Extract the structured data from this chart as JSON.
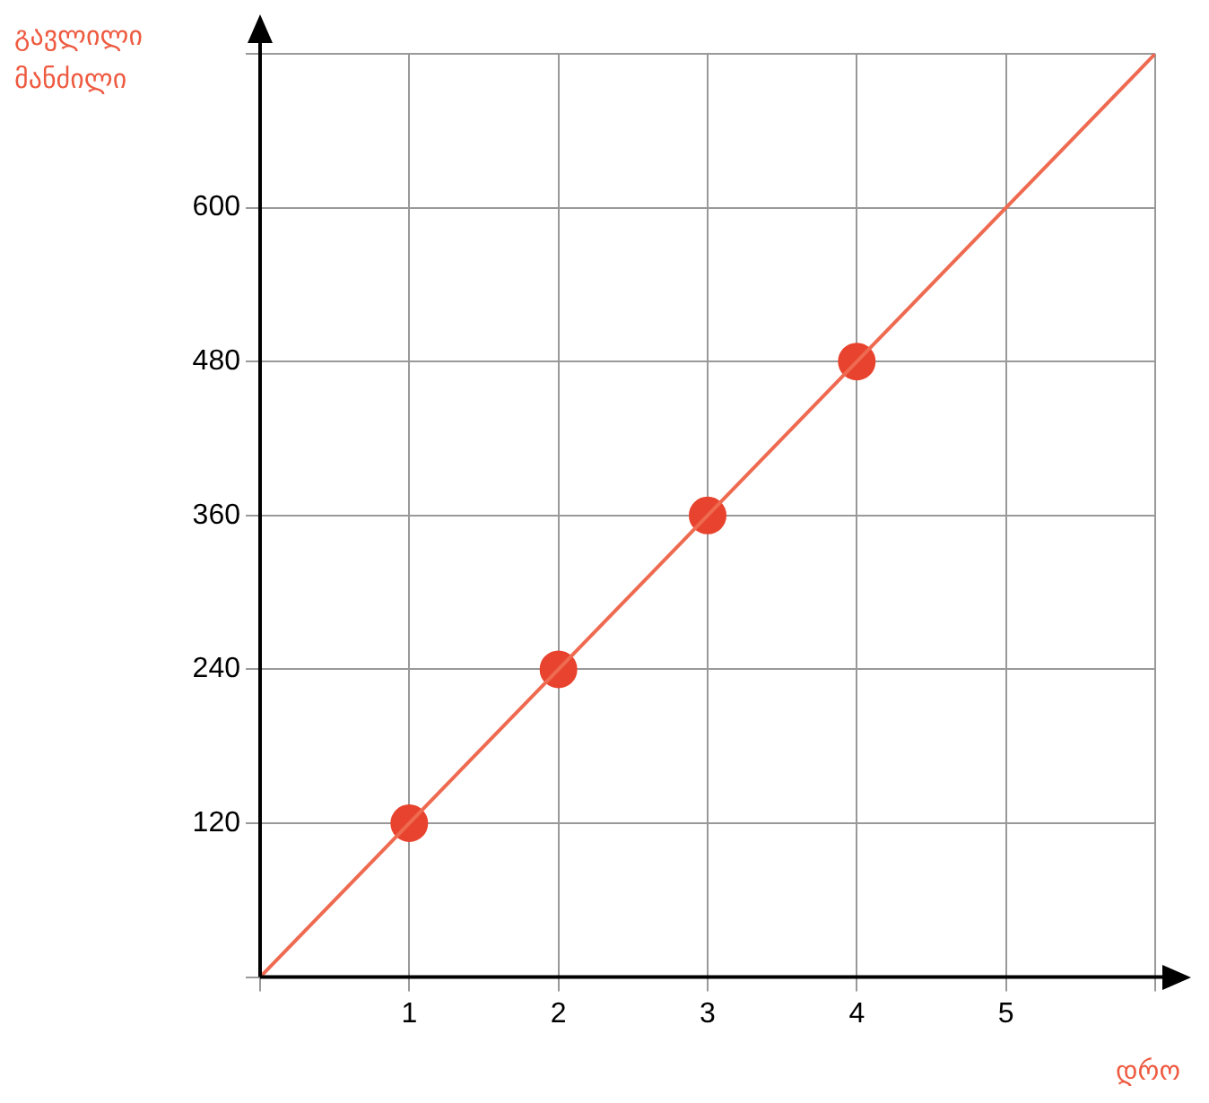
{
  "chart_data": {
    "type": "line",
    "ylabel": "გავლილი მანძილი",
    "xlabel": "დრო",
    "xlim": [
      0,
      6
    ],
    "ylim": [
      0,
      720
    ],
    "xticks": [
      {
        "value": 0,
        "label": null
      },
      1,
      2,
      3,
      4,
      5,
      {
        "value": 6,
        "label": null
      }
    ],
    "yticks": [
      {
        "value": 0,
        "label": null
      },
      120,
      240,
      360,
      480,
      600,
      {
        "value": 720,
        "label": null
      }
    ],
    "grid": true,
    "legend": false,
    "series": [
      {
        "type": "line",
        "color": "#ee6a50",
        "x": [
          0,
          6
        ],
        "values": [
          0,
          720
        ],
        "marker": "none"
      },
      {
        "type": "scatter",
        "color": "#e8432e",
        "x": [
          1,
          2,
          3,
          4
        ],
        "values": [
          120,
          240,
          360,
          480
        ],
        "marker": "circle"
      }
    ]
  }
}
